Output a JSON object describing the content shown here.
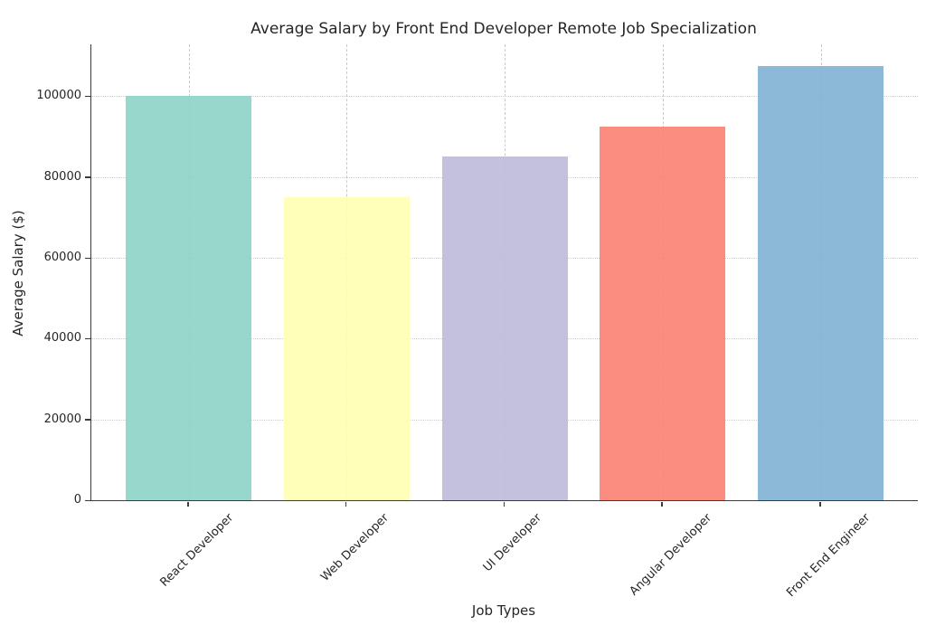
{
  "chart_data": {
    "type": "bar",
    "title": "Average Salary by Front End Developer Remote Job Specialization",
    "xlabel": "Job Types",
    "ylabel": "Average Salary ($)",
    "categories": [
      "React Developer",
      "Web Developer",
      "UI Developer",
      "Angular Developer",
      "Front End Engineer"
    ],
    "values": [
      100000,
      75000,
      85000,
      92500,
      107500
    ],
    "bar_colors": [
      "#8dd3c7",
      "#ffffb3",
      "#bebada",
      "#fb8072",
      "#80b1d3"
    ],
    "yticks": [
      0,
      20000,
      40000,
      60000,
      80000,
      100000
    ],
    "ylim": [
      0,
      112875
    ],
    "grid": true,
    "legend_position": "none",
    "accent_colors": {
      "axis": "#3b3b3b",
      "grid_horizontal": "#cfcfcf",
      "grid_vertical": "#c9c9c9",
      "text": "#262626"
    }
  }
}
